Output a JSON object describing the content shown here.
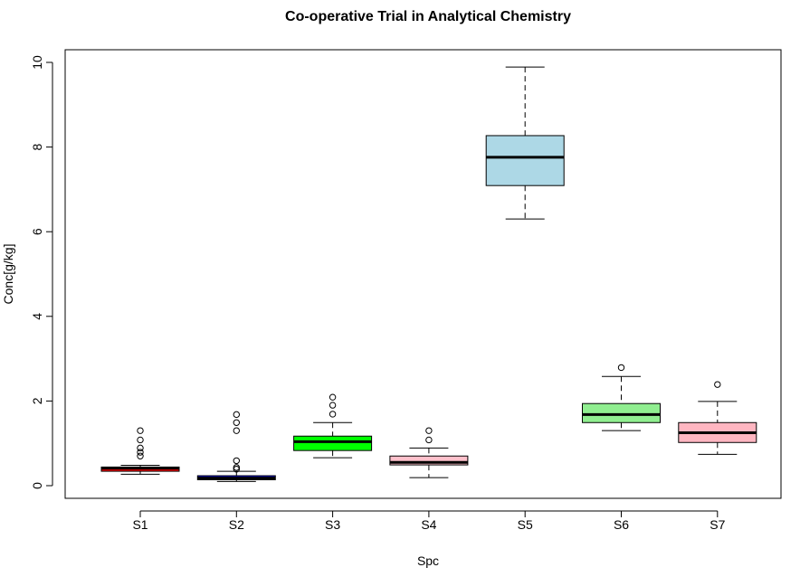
{
  "chart_data": {
    "type": "boxplot",
    "title": "Co-operative Trial in Analytical Chemistry",
    "xlabel": "Spc",
    "ylabel": "Conc[g/kg]",
    "ylim": [
      -0.3,
      10.3
    ],
    "yticks": [
      0,
      2,
      4,
      6,
      8,
      10
    ],
    "categories": [
      "S1",
      "S2",
      "S3",
      "S4",
      "S5",
      "S6",
      "S7"
    ],
    "boxes": [
      {
        "name": "S1",
        "fill": "#ff0000",
        "whisker_low": 0.27,
        "q1": 0.34,
        "median": 0.41,
        "q3": 0.44,
        "whisker_high": 0.48,
        "outliers": [
          0.7,
          0.79,
          0.89,
          1.08,
          1.3
        ]
      },
      {
        "name": "S2",
        "fill": "#0000ff",
        "whisker_low": 0.1,
        "q1": 0.14,
        "median": 0.18,
        "q3": 0.235,
        "whisker_high": 0.34,
        "outliers": [
          0.39,
          0.43,
          0.59,
          1.3,
          1.49,
          1.68
        ]
      },
      {
        "name": "S3",
        "fill": "#00ff00",
        "whisker_low": 0.66,
        "q1": 0.83,
        "median": 1.04,
        "q3": 1.17,
        "whisker_high": 1.49,
        "outliers": [
          1.69,
          1.9,
          2.09
        ]
      },
      {
        "name": "S4",
        "fill": "#ffc0cb",
        "whisker_low": 0.19,
        "q1": 0.49,
        "median": 0.55,
        "q3": 0.7,
        "whisker_high": 0.89,
        "outliers": [
          1.08,
          1.3
        ]
      },
      {
        "name": "S5",
        "fill": "#add8e6",
        "whisker_low": 6.3,
        "q1": 7.09,
        "median": 7.76,
        "q3": 8.27,
        "whisker_high": 9.89,
        "outliers": []
      },
      {
        "name": "S6",
        "fill": "#90ee90",
        "whisker_low": 1.3,
        "q1": 1.49,
        "median": 1.68,
        "q3": 1.94,
        "whisker_high": 2.58,
        "outliers": [
          2.79
        ]
      },
      {
        "name": "S7",
        "fill": "#ffb6c1",
        "whisker_low": 0.74,
        "q1": 1.02,
        "median": 1.25,
        "q3": 1.49,
        "whisker_high": 1.99,
        "outliers": [
          2.39
        ]
      }
    ]
  }
}
